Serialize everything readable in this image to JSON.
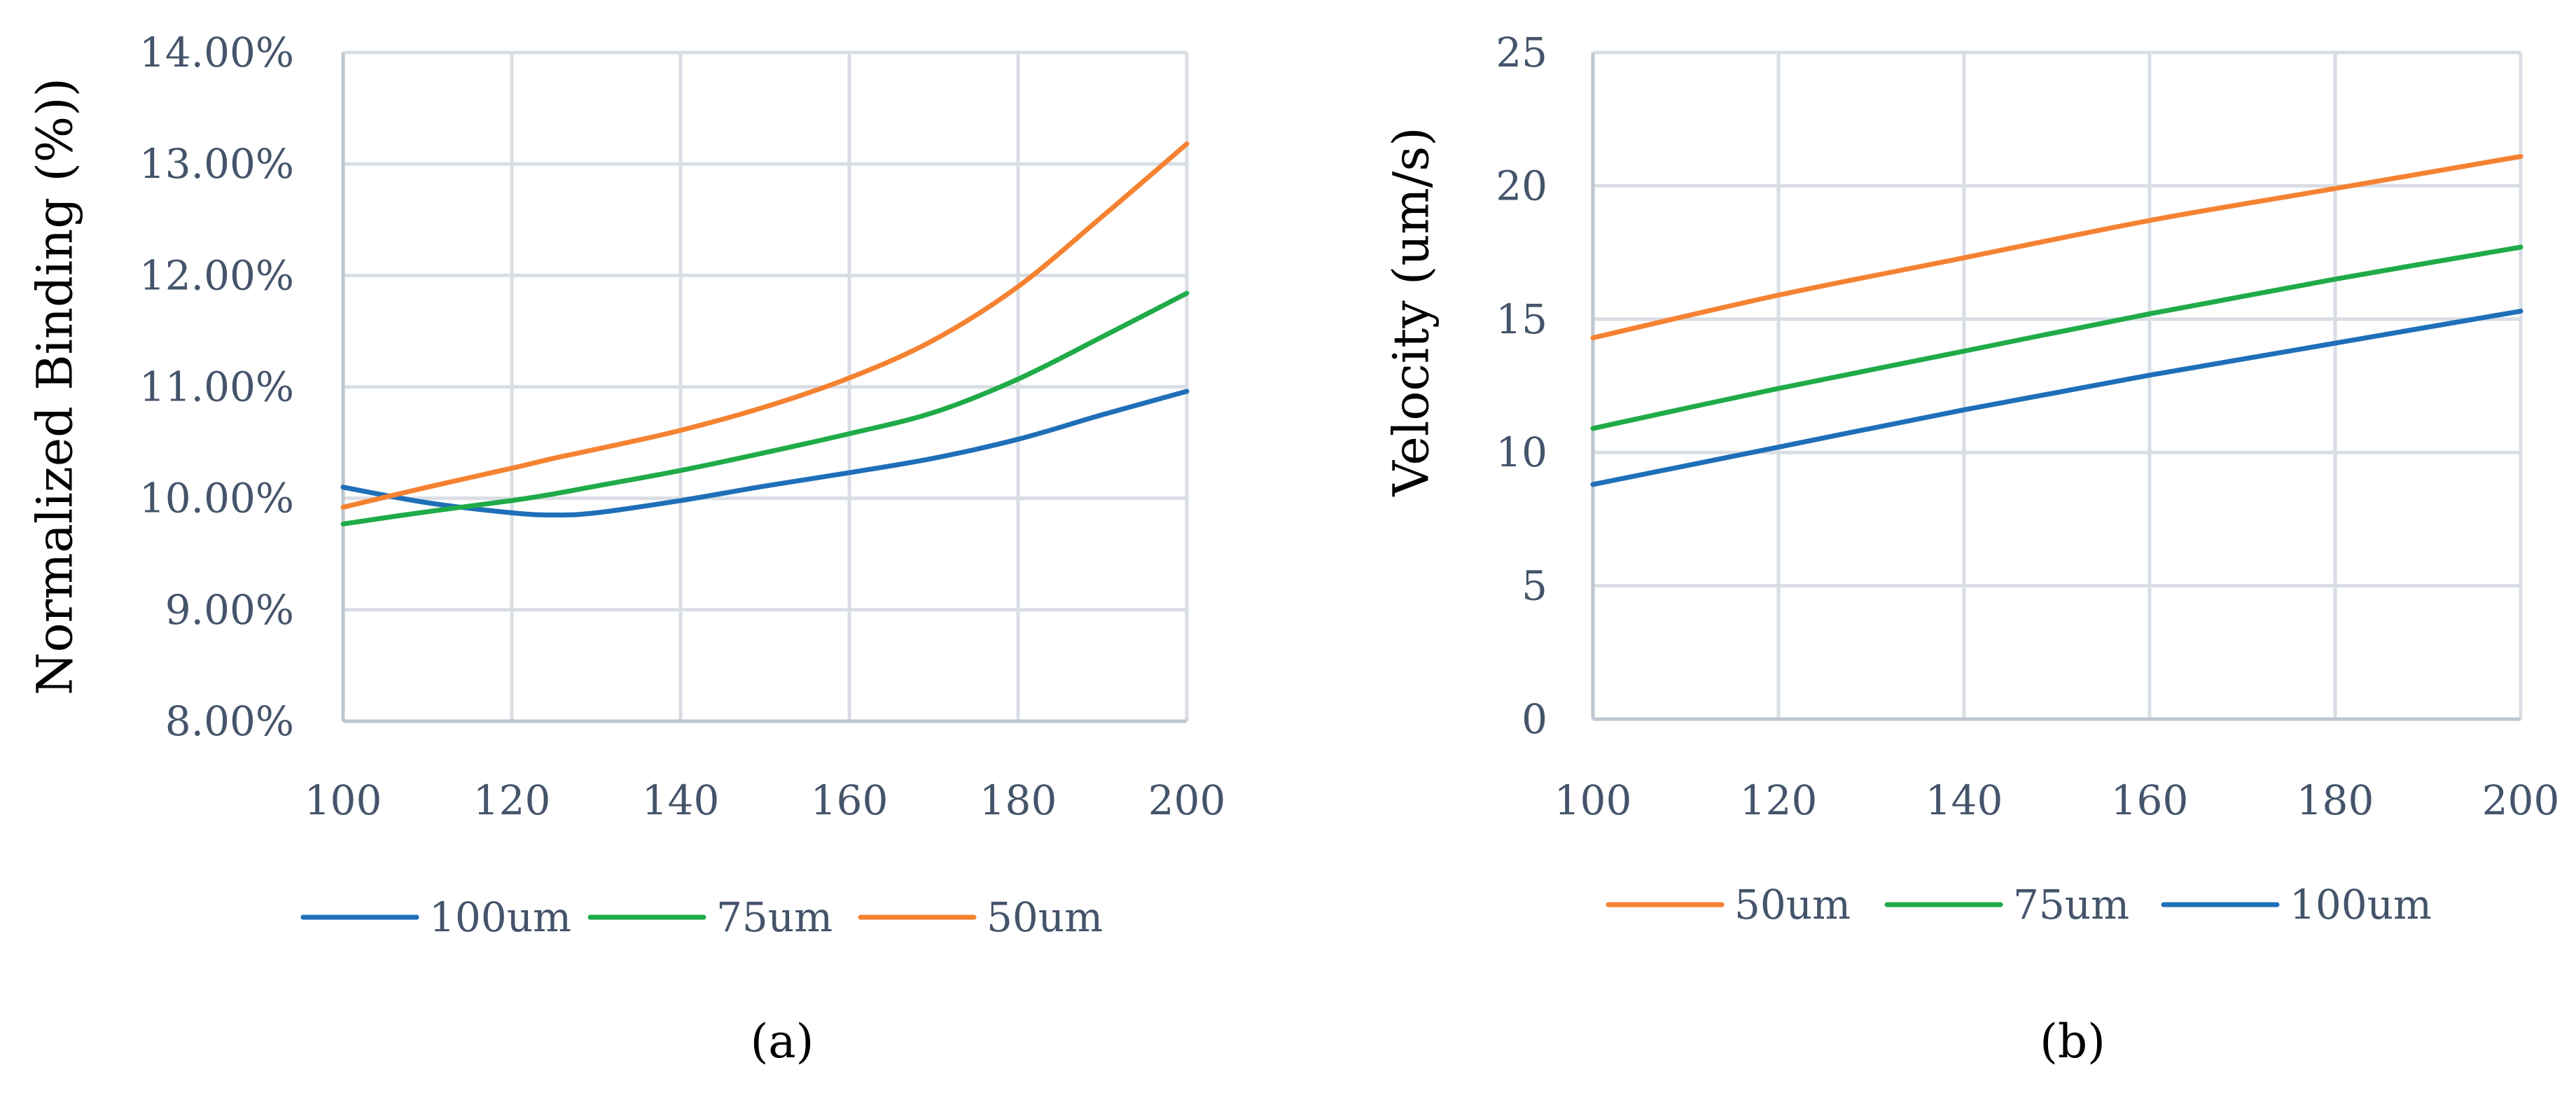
{
  "chart_data": [
    {
      "id": "a",
      "type": "line",
      "caption": "(a)",
      "ylabel": "Normalized Binding (%))",
      "xlabel": "",
      "x": [
        100,
        110,
        120,
        125,
        130,
        140,
        150,
        160,
        170,
        180,
        190,
        200
      ],
      "xlim": [
        100,
        200
      ],
      "ylim": [
        0.08,
        0.14
      ],
      "x_ticks": [
        100,
        120,
        140,
        160,
        180,
        200
      ],
      "x_tick_labels": [
        "100",
        "120",
        "140",
        "160",
        "180",
        "200"
      ],
      "y_ticks": [
        0.08,
        0.09,
        0.1,
        0.11,
        0.12,
        0.13,
        0.14
      ],
      "y_tick_labels": [
        "8.00%",
        "9.00%",
        "10.00%",
        "11.00%",
        "12.00%",
        "13.00%",
        "14.00%"
      ],
      "grid": true,
      "legend": [
        "100um",
        "75um",
        "50um"
      ],
      "series": [
        {
          "name": "100um",
          "color": "#1f6fb8",
          "values": [
            0.101,
            0.0996,
            0.0987,
            0.0985,
            0.0987,
            0.0998,
            0.1011,
            0.1023,
            0.1036,
            0.1053,
            0.1075,
            0.1096
          ]
        },
        {
          "name": "75um",
          "color": "#1fab48",
          "values": [
            0.0977,
            0.0988,
            0.0998,
            0.1004,
            0.1011,
            0.1025,
            0.1041,
            0.1058,
            0.1077,
            0.1107,
            0.1145,
            0.1184
          ]
        },
        {
          "name": "50um",
          "color": "#f58231",
          "values": [
            0.0992,
            0.101,
            0.1027,
            0.1036,
            0.1044,
            0.1061,
            0.1082,
            0.1108,
            0.1142,
            0.119,
            0.1253,
            0.1318
          ]
        }
      ]
    },
    {
      "id": "b",
      "type": "line",
      "caption": "(b)",
      "ylabel": "Velocity (um/s)",
      "xlabel": "",
      "x": [
        100,
        120,
        140,
        160,
        180,
        200
      ],
      "xlim": [
        100,
        200
      ],
      "ylim": [
        0,
        25
      ],
      "x_ticks": [
        100,
        120,
        140,
        160,
        180,
        200
      ],
      "x_tick_labels": [
        "100",
        "120",
        "140",
        "160",
        "180",
        "200"
      ],
      "y_ticks": [
        0,
        5,
        10,
        15,
        20,
        25
      ],
      "y_tick_labels": [
        "0",
        "5",
        "10",
        "15",
        "20",
        "25"
      ],
      "grid": true,
      "legend": [
        "50um",
        "75um",
        "100um"
      ],
      "series": [
        {
          "name": "50um",
          "color": "#f58231",
          "values": [
            14.3,
            15.9,
            17.3,
            18.7,
            19.9,
            21.1
          ]
        },
        {
          "name": "75um",
          "color": "#1fab48",
          "values": [
            10.9,
            12.4,
            13.8,
            15.2,
            16.5,
            17.7
          ]
        },
        {
          "name": "100um",
          "color": "#1f6fb8",
          "values": [
            8.8,
            10.2,
            11.6,
            12.9,
            14.1,
            15.3
          ]
        }
      ]
    }
  ]
}
